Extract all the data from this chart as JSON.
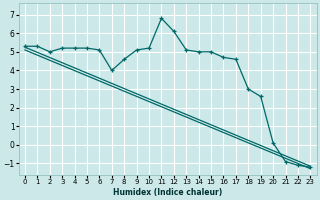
{
  "xlabel": "Humidex (Indice chaleur)",
  "background_color": "#cce8e8",
  "grid_color": "#ffffff",
  "line_color": "#006868",
  "xlim": [
    -0.5,
    23.5
  ],
  "ylim": [
    -1.6,
    7.6
  ],
  "yticks": [
    -1,
    0,
    1,
    2,
    3,
    4,
    5,
    6,
    7
  ],
  "xticks": [
    0,
    1,
    2,
    3,
    4,
    5,
    6,
    7,
    8,
    9,
    10,
    11,
    12,
    13,
    14,
    15,
    16,
    17,
    18,
    19,
    20,
    21,
    22,
    23
  ],
  "series1_x": [
    0,
    1,
    2,
    3,
    4,
    5,
    6,
    7,
    8,
    9,
    10,
    11,
    12,
    13,
    14,
    15,
    16,
    17,
    18,
    19,
    20,
    21,
    22,
    23
  ],
  "series1_y": [
    5.3,
    5.3,
    5.0,
    5.2,
    5.2,
    5.2,
    5.1,
    4.0,
    4.6,
    5.1,
    5.2,
    6.8,
    6.1,
    5.1,
    5.0,
    5.0,
    4.7,
    4.6,
    3.0,
    2.6,
    0.1,
    -0.9,
    -1.1,
    -1.2
  ],
  "reg1_x0": 0,
  "reg1_y0": 5.25,
  "reg1_x1": 23,
  "reg1_y1": -1.15,
  "reg2_x0": 0,
  "reg2_y0": 5.1,
  "reg2_x1": 23,
  "reg2_y1": -1.28
}
